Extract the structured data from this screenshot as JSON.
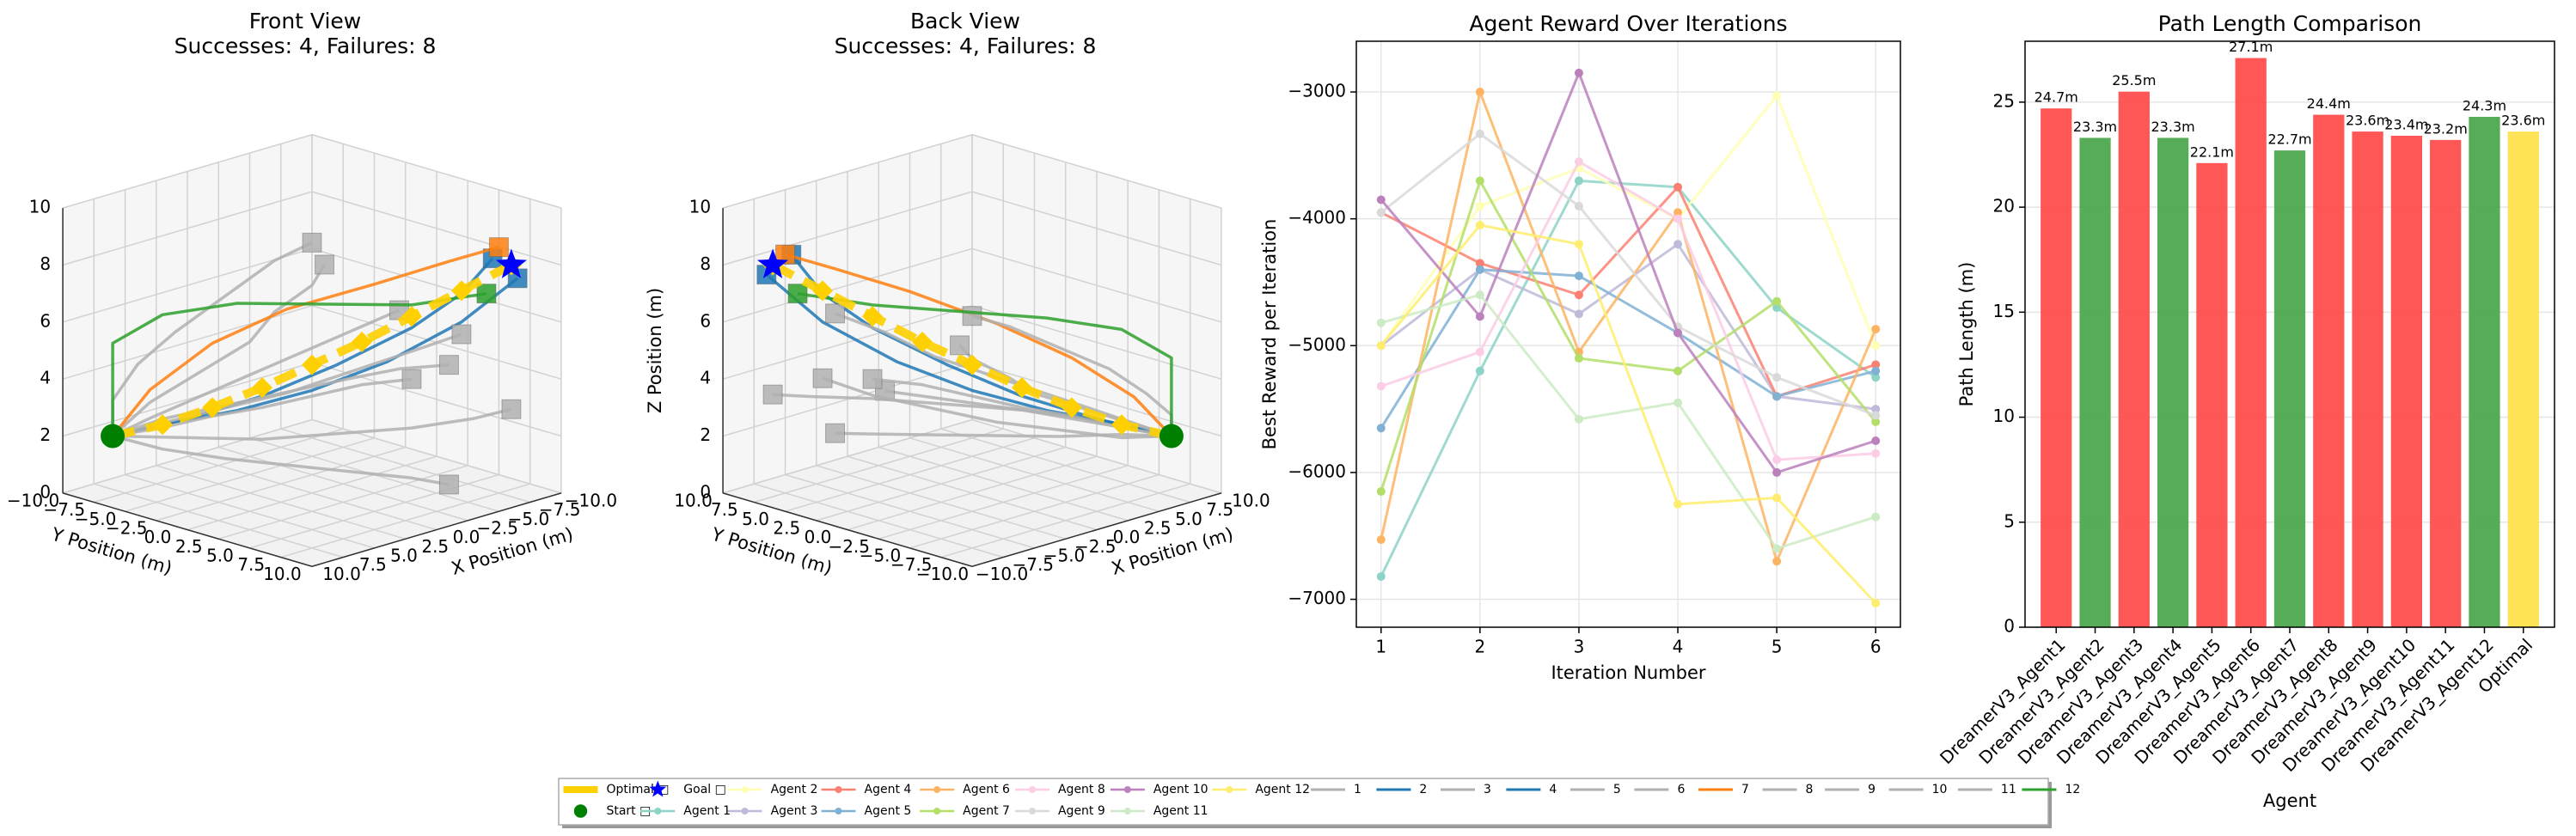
{
  "chart_data": [
    {
      "type": "scatter3d",
      "view": "front",
      "title": "Front View",
      "subtitle": "Successes: 4, Failures: 8",
      "xlabel": "X Position (m)",
      "ylabel": "Y Position (m)",
      "xlim": [
        -10,
        10
      ],
      "ylim": [
        -10,
        10
      ],
      "zlim": [
        0,
        10
      ],
      "xticks": [
        {
          "value": -10,
          "label": "−10.0"
        },
        {
          "value": -7.5,
          "label": "−7.5"
        },
        {
          "value": -5,
          "label": "−5.0"
        },
        {
          "value": -2.5,
          "label": "−2.5"
        },
        {
          "value": 0,
          "label": "0.0"
        },
        {
          "value": 2.5,
          "label": "2.5"
        },
        {
          "value": 5,
          "label": "5.0"
        },
        {
          "value": 7.5,
          "label": "7.5"
        },
        {
          "value": 10,
          "label": "10.0"
        }
      ],
      "yticks": [
        {
          "value": -10,
          "label": "−10.0"
        },
        {
          "value": -7.5,
          "label": "−7.5"
        },
        {
          "value": -5,
          "label": "−5.0"
        },
        {
          "value": -2.5,
          "label": "−2.5"
        },
        {
          "value": 0,
          "label": "0.0"
        },
        {
          "value": 2.5,
          "label": "2.5"
        },
        {
          "value": 5,
          "label": "5.0"
        },
        {
          "value": 7.5,
          "label": "7.5"
        },
        {
          "value": 10,
          "label": "10.0"
        }
      ],
      "zticks": [
        0,
        2,
        4,
        6,
        8,
        10
      ],
      "series": [
        {
          "name": "Optimal □",
          "color": "#ffd000",
          "linestyle": "dashed",
          "marker": "diamond",
          "x": [
            8,
            6,
            4,
            2,
            0,
            -2,
            -4,
            -6,
            -8
          ],
          "y": [
            -8,
            -6,
            -4,
            -2,
            0,
            2,
            4,
            6,
            8
          ],
          "z": [
            2,
            2.4,
            3,
            3.7,
            4.5,
            5.3,
            6.2,
            7.1,
            8
          ]
        },
        {
          "name": "Start □",
          "color": "#008000",
          "marker": "circle",
          "x": [
            8
          ],
          "y": [
            -8
          ],
          "z": [
            2
          ]
        },
        {
          "name": "Goal □",
          "color": "#0000ff",
          "marker": "star",
          "x": [
            -8
          ],
          "y": [
            8
          ],
          "z": [
            8
          ]
        },
        {
          "name": "1",
          "color": "#b0b0b0",
          "end_marker": "square",
          "x": [
            8,
            6,
            3,
            0,
            -3,
            -6,
            -9
          ],
          "y": [
            -8,
            -7,
            -6,
            -5,
            -4,
            -3,
            -2
          ],
          "z": [
            2,
            2.5,
            3,
            3.5,
            4,
            4.5,
            5
          ]
        },
        {
          "name": "2",
          "color": "#1f77b4",
          "end_marker": "square",
          "x": [
            8,
            5,
            2,
            -1,
            -4,
            -6,
            -7
          ],
          "y": [
            -8,
            -5,
            -2,
            1,
            4,
            6,
            7.5
          ],
          "z": [
            2,
            2.6,
            3.4,
            4.5,
            5.8,
            7,
            8.3
          ]
        },
        {
          "name": "3",
          "color": "#b0b0b0",
          "end_marker": "square",
          "x": [
            8,
            6,
            4,
            1,
            -2,
            -5,
            -7
          ],
          "y": [
            -8,
            -4,
            0,
            3,
            6,
            8,
            9
          ],
          "z": [
            2,
            2.2,
            2.4,
            2.6,
            2.8,
            3,
            3.2
          ]
        },
        {
          "name": "4",
          "color": "#1f77b4",
          "end_marker": "square",
          "x": [
            8,
            6,
            3,
            0,
            -3,
            -6,
            -8
          ],
          "y": [
            -8,
            -6,
            -3,
            0,
            3,
            6,
            8.5
          ],
          "z": [
            2,
            2.4,
            2.9,
            3.6,
            4.6,
            6,
            7.6
          ]
        },
        {
          "name": "5",
          "color": "#b0b0b0",
          "end_marker": "square",
          "x": [
            8,
            5,
            2,
            -1,
            -3,
            -5,
            -6
          ],
          "y": [
            -8,
            -8,
            -7,
            -6,
            -6,
            -5,
            -5
          ],
          "z": [
            2,
            2.8,
            3.6,
            4.4,
            5.2,
            6,
            6.6
          ]
        },
        {
          "name": "6",
          "color": "#b0b0b0",
          "end_marker": "square",
          "x": [
            8,
            7,
            5,
            3,
            1,
            -1,
            -2
          ],
          "y": [
            -8,
            -5,
            -2,
            1,
            4,
            7,
            9
          ],
          "z": [
            2,
            1.8,
            1.6,
            1.5,
            1.4,
            1.3,
            1.2
          ]
        },
        {
          "name": "7",
          "color": "#ff7f0e",
          "end_marker": "square",
          "x": [
            8,
            6,
            3,
            0,
            -3,
            -6,
            -8
          ],
          "y": [
            -8,
            -7,
            -5,
            -2,
            2,
            5,
            7
          ],
          "z": [
            2,
            3.5,
            5,
            6.2,
            7.2,
            8,
            8.5
          ]
        },
        {
          "name": "8",
          "color": "#b0b0b0",
          "end_marker": "square",
          "x": [
            8,
            6,
            4,
            2,
            0,
            -2,
            -4
          ],
          "y": [
            -8,
            -6,
            -4,
            -2,
            0,
            2,
            4
          ],
          "z": [
            2,
            2.3,
            2.7,
            3,
            3.4,
            3.8,
            4
          ]
        },
        {
          "name": "9",
          "color": "#b0b0b0",
          "end_marker": "square",
          "x": [
            8,
            7,
            5,
            3,
            0,
            -3,
            -5
          ],
          "y": [
            -8,
            -9,
            -9,
            -8,
            -7,
            -6,
            -5
          ],
          "z": [
            2,
            3,
            4,
            5,
            6,
            7,
            7.5
          ]
        },
        {
          "name": "10",
          "color": "#b0b0b0",
          "end_marker": "square",
          "x": [
            8,
            5,
            2,
            -1,
            -4,
            -7,
            -9
          ],
          "y": [
            -8,
            -7,
            -5,
            -3,
            -1,
            1,
            3
          ],
          "z": [
            2,
            2.2,
            2.6,
            3,
            3.6,
            4.2,
            4.8
          ]
        },
        {
          "name": "11",
          "color": "#b0b0b0",
          "end_marker": "square",
          "x": [
            8,
            6,
            4,
            2,
            0,
            -1,
            -2
          ],
          "y": [
            -8,
            -6,
            -3,
            0,
            3,
            6,
            9
          ],
          "z": [
            2,
            2.6,
            3.2,
            3.8,
            4.4,
            5,
            5.4
          ]
        },
        {
          "name": "12",
          "color": "#2ca02c",
          "end_marker": "square",
          "x": [
            8,
            7,
            5,
            2,
            -1,
            -4,
            -7
          ],
          "y": [
            -8,
            -9,
            -7,
            -4,
            0,
            4,
            7
          ],
          "z": [
            2,
            5,
            6,
            6.4,
            6.5,
            6.6,
            7
          ]
        }
      ]
    },
    {
      "type": "scatter3d",
      "view": "back",
      "title": "Back View",
      "subtitle": "Successes: 4, Failures: 8",
      "xlabel": "X Position (m)",
      "ylabel": "Y Position (m)",
      "zlabel": "Z Position (m)",
      "xlim": [
        -10,
        10
      ],
      "ylim": [
        -10,
        10
      ],
      "zlim": [
        0,
        10
      ],
      "xticks": [
        {
          "value": -10,
          "label": "−10.0"
        },
        {
          "value": -7.5,
          "label": "−7.5"
        },
        {
          "value": -5,
          "label": "−5.0"
        },
        {
          "value": -2.5,
          "label": "−2.5"
        },
        {
          "value": 0,
          "label": "0.0"
        },
        {
          "value": 2.5,
          "label": "2.5"
        },
        {
          "value": 5,
          "label": "5.0"
        },
        {
          "value": 7.5,
          "label": "7.5"
        },
        {
          "value": 10,
          "label": "10.0"
        }
      ],
      "yticks": [
        {
          "value": -10,
          "label": "−10.0"
        },
        {
          "value": -7.5,
          "label": "−7.5"
        },
        {
          "value": -5,
          "label": "−5.0"
        },
        {
          "value": -2.5,
          "label": "−2.5"
        },
        {
          "value": 0,
          "label": "0.0"
        },
        {
          "value": 2.5,
          "label": "2.5"
        },
        {
          "value": 5,
          "label": "5.0"
        },
        {
          "value": 7.5,
          "label": "7.5"
        },
        {
          "value": 10,
          "label": "10.0"
        }
      ],
      "zticks": [
        0,
        2,
        4,
        6,
        8,
        10
      ]
    },
    {
      "type": "line",
      "title": "Agent Reward Over Iterations",
      "xlabel": "Iteration Number",
      "ylabel": "Best Reward per Iteration",
      "x": [
        1,
        2,
        3,
        4,
        5,
        6
      ],
      "xlim": [
        0.75,
        6.25
      ],
      "xticks": [
        1,
        2,
        3,
        4,
        5,
        6
      ],
      "ylim": [
        -7220,
        -2600
      ],
      "yticks": [
        {
          "value": -7000,
          "label": "−7000"
        },
        {
          "value": -6000,
          "label": "−6000"
        },
        {
          "value": -5000,
          "label": "−5000"
        },
        {
          "value": -4000,
          "label": "−4000"
        },
        {
          "value": -3000,
          "label": "−3000"
        }
      ],
      "grid": true,
      "series": [
        {
          "name": "Agent 1",
          "color": "#8dd3c7",
          "values": [
            -6820,
            -5200,
            -3700,
            -3750,
            -4700,
            -5250
          ]
        },
        {
          "name": "Agent 2",
          "color": "#ffffb3",
          "values": [
            -5000,
            -3900,
            -3600,
            -4000,
            -3030,
            -5000
          ]
        },
        {
          "name": "Agent 3",
          "color": "#bebada",
          "values": [
            -5000,
            -4400,
            -4750,
            -4200,
            -5400,
            -5500
          ]
        },
        {
          "name": "Agent 4",
          "color": "#fb8072",
          "values": [
            -3950,
            -4350,
            -4600,
            -3750,
            -5400,
            -5150
          ]
        },
        {
          "name": "Agent 5",
          "color": "#80b1d3",
          "values": [
            -5650,
            -4400,
            -4450,
            -4900,
            -5400,
            -5200
          ]
        },
        {
          "name": "Agent 6",
          "color": "#fdb462",
          "values": [
            -6530,
            -3000,
            -5050,
            -3950,
            -6700,
            -4870
          ]
        },
        {
          "name": "Agent 7",
          "color": "#b3de69",
          "values": [
            -6150,
            -3700,
            -5100,
            -5200,
            -4650,
            -5600
          ]
        },
        {
          "name": "Agent 8",
          "color": "#fccde5",
          "values": [
            -5320,
            -5050,
            -3550,
            -4000,
            -5900,
            -5850
          ]
        },
        {
          "name": "Agent 9",
          "color": "#d9d9d9",
          "values": [
            -3950,
            -3330,
            -3900,
            -4850,
            -5250,
            -5550
          ]
        },
        {
          "name": "Agent 10",
          "color": "#bc80bd",
          "values": [
            -3850,
            -4770,
            -2850,
            -4900,
            -6000,
            -5750
          ]
        },
        {
          "name": "Agent 11",
          "color": "#ccebc5",
          "values": [
            -4820,
            -4600,
            -5580,
            -5450,
            -6600,
            -6350
          ]
        },
        {
          "name": "Agent 12",
          "color": "#ffed6f",
          "values": [
            -5000,
            -4050,
            -4200,
            -6250,
            -6200,
            -7030
          ]
        }
      ]
    },
    {
      "type": "bar",
      "title": "Path Length Comparison",
      "xlabel": "Agent",
      "ylabel": "Path Length (m)",
      "categories": [
        "DreamerV3_Agent1",
        "DreamerV3_Agent2",
        "DreamerV3_Agent3",
        "DreamerV3_Agent4",
        "DreamerV3_Agent5",
        "DreamerV3_Agent6",
        "DreamerV3_Agent7",
        "DreamerV3_Agent8",
        "DreamerV3_Agent9",
        "DreamerV3_Agent10",
        "DreamerV3_Agent11",
        "DreamerV3_Agent12",
        "Optimal"
      ],
      "values": [
        24.7,
        23.3,
        25.5,
        23.3,
        22.1,
        27.1,
        22.7,
        24.4,
        23.6,
        23.4,
        23.2,
        24.3,
        23.6
      ],
      "value_labels": [
        "24.7m",
        "23.3m",
        "25.5m",
        "23.3m",
        "22.1m",
        "27.1m",
        "22.7m",
        "24.4m",
        "23.6m",
        "23.4m",
        "23.2m",
        "24.3m",
        "23.6m"
      ],
      "colors": [
        "#ff4d4d",
        "#4ea84e",
        "#ff4d4d",
        "#4ea84e",
        "#ff4d4d",
        "#ff4d4d",
        "#4ea84e",
        "#ff4d4d",
        "#ff4d4d",
        "#ff4d4d",
        "#ff4d4d",
        "#4ea84e",
        "#ffe14d"
      ],
      "ylim": [
        0,
        27.9
      ],
      "yticks": [
        0,
        5,
        10,
        15,
        20,
        25
      ],
      "grid": true
    }
  ]
}
